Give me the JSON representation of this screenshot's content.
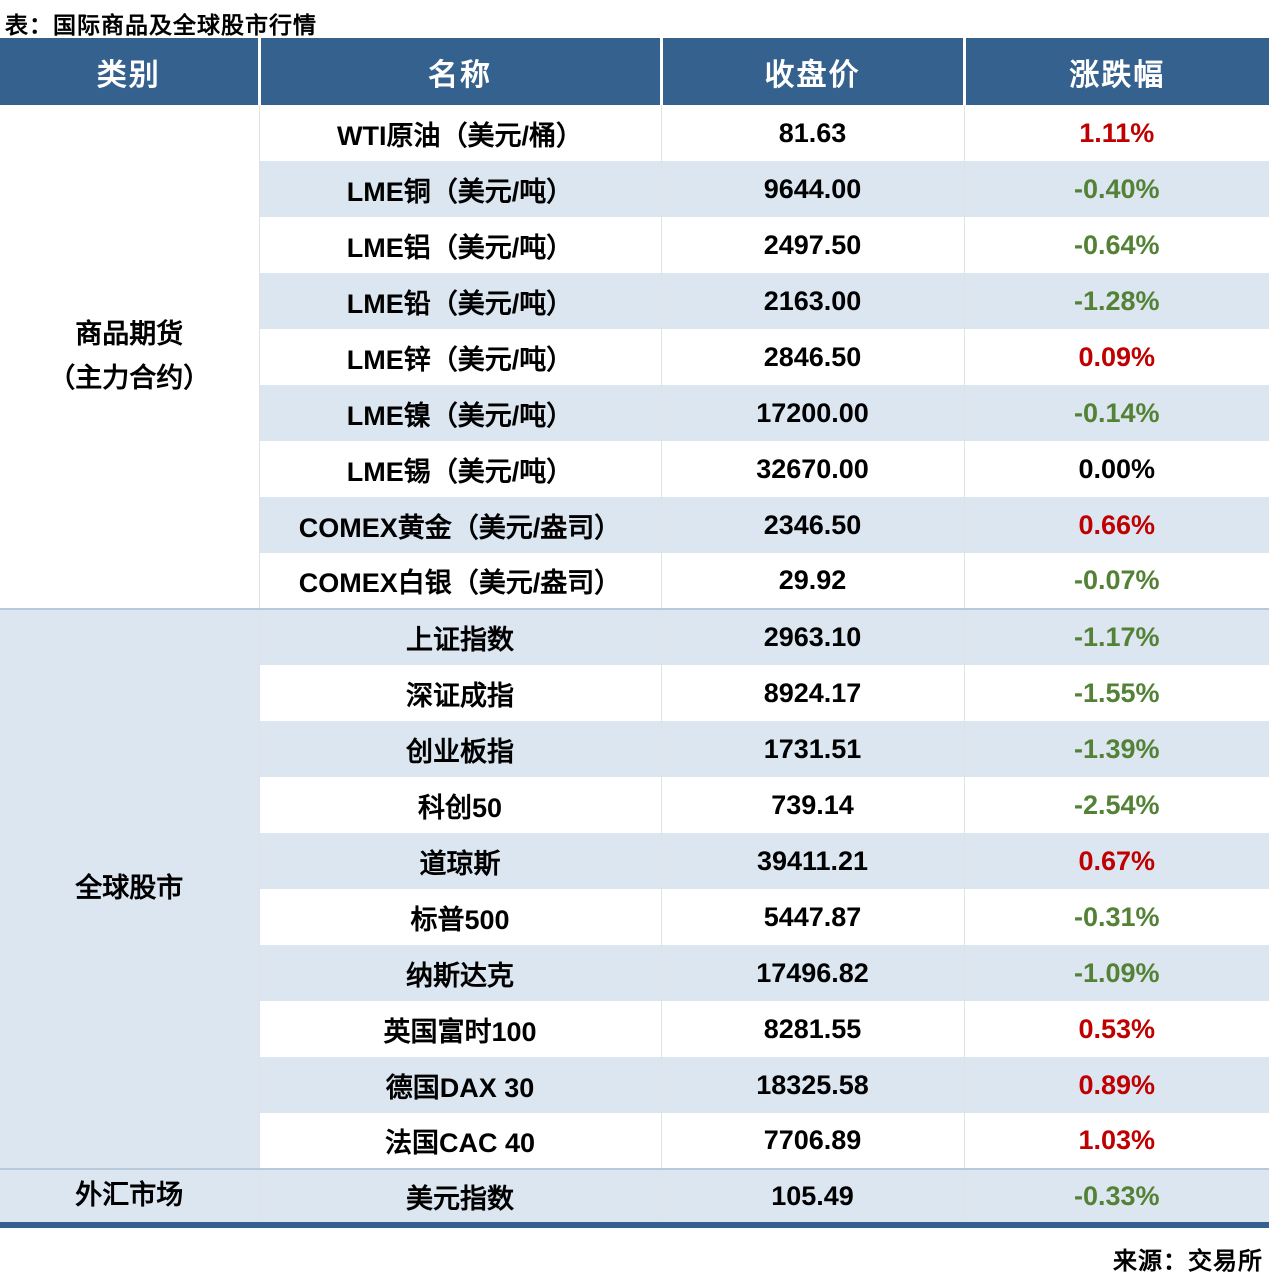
{
  "title": "表：国际商品及全球股市行情",
  "source": "来源：交易所",
  "colors": {
    "header_bg": "#35618E",
    "stripe_bg": "#DCE6F1",
    "up_red": "#C00000",
    "down_green": "#538135",
    "divider": "#B9C9DC"
  },
  "columns": [
    "类别",
    "名称",
    "收盘价",
    "涨跌幅"
  ],
  "groups": [
    {
      "category_lines": [
        "商品期货",
        "（主力合约）"
      ],
      "rows": [
        {
          "name": "WTI原油（美元/桶）",
          "close": "81.63",
          "change": "1.11%",
          "trend": "up"
        },
        {
          "name": "LME铜（美元/吨）",
          "close": "9644.00",
          "change": "-0.40%",
          "trend": "down"
        },
        {
          "name": "LME铝（美元/吨）",
          "close": "2497.50",
          "change": "-0.64%",
          "trend": "down"
        },
        {
          "name": "LME铅（美元/吨）",
          "close": "2163.00",
          "change": "-1.28%",
          "trend": "down"
        },
        {
          "name": "LME锌（美元/吨）",
          "close": "2846.50",
          "change": "0.09%",
          "trend": "up"
        },
        {
          "name": "LME镍（美元/吨）",
          "close": "17200.00",
          "change": "-0.14%",
          "trend": "down"
        },
        {
          "name": "LME锡（美元/吨）",
          "close": "32670.00",
          "change": "0.00%",
          "trend": "flat"
        },
        {
          "name": "COMEX黄金（美元/盎司）",
          "close": "2346.50",
          "change": "0.66%",
          "trend": "up"
        },
        {
          "name": "COMEX白银（美元/盎司）",
          "close": "29.92",
          "change": "-0.07%",
          "trend": "down"
        }
      ]
    },
    {
      "category_lines": [
        "全球股市"
      ],
      "rows": [
        {
          "name": "上证指数",
          "close": "2963.10",
          "change": "-1.17%",
          "trend": "down"
        },
        {
          "name": "深证成指",
          "close": "8924.17",
          "change": "-1.55%",
          "trend": "down"
        },
        {
          "name": "创业板指",
          "close": "1731.51",
          "change": "-1.39%",
          "trend": "down"
        },
        {
          "name": "科创50",
          "close": "739.14",
          "change": "-2.54%",
          "trend": "down"
        },
        {
          "name": "道琼斯",
          "close": "39411.21",
          "change": "0.67%",
          "trend": "up"
        },
        {
          "name": "标普500",
          "close": "5447.87",
          "change": "-0.31%",
          "trend": "down"
        },
        {
          "name": "纳斯达克",
          "close": "17496.82",
          "change": "-1.09%",
          "trend": "down"
        },
        {
          "name": "英国富时100",
          "close": "8281.55",
          "change": "0.53%",
          "trend": "up"
        },
        {
          "name": "德国DAX 30",
          "close": "18325.58",
          "change": "0.89%",
          "trend": "up"
        },
        {
          "name": "法国CAC 40",
          "close": "7706.89",
          "change": "1.03%",
          "trend": "up"
        }
      ]
    },
    {
      "category_lines": [
        "外汇市场"
      ],
      "rows": [
        {
          "name": "美元指数",
          "close": "105.49",
          "change": "-0.33%",
          "trend": "down"
        }
      ]
    }
  ],
  "chart_data": {
    "type": "table",
    "title": "表：国际商品及全球股市行情",
    "columns": [
      "类别",
      "名称",
      "收盘价",
      "涨跌幅"
    ],
    "rows": [
      [
        "商品期货（主力合约）",
        "WTI原油（美元/桶）",
        81.63,
        "1.11%"
      ],
      [
        "商品期货（主力合约）",
        "LME铜（美元/吨）",
        9644.0,
        "-0.40%"
      ],
      [
        "商品期货（主力合约）",
        "LME铝（美元/吨）",
        2497.5,
        "-0.64%"
      ],
      [
        "商品期货（主力合约）",
        "LME铅（美元/吨）",
        2163.0,
        "-1.28%"
      ],
      [
        "商品期货（主力合约）",
        "LME锌（美元/吨）",
        2846.5,
        "0.09%"
      ],
      [
        "商品期货（主力合约）",
        "LME镍（美元/吨）",
        17200.0,
        "-0.14%"
      ],
      [
        "商品期货（主力合约）",
        "LME锡（美元/吨）",
        32670.0,
        "0.00%"
      ],
      [
        "商品期货（主力合约）",
        "COMEX黄金（美元/盎司）",
        2346.5,
        "0.66%"
      ],
      [
        "商品期货（主力合约）",
        "COMEX白银（美元/盎司）",
        29.92,
        "-0.07%"
      ],
      [
        "全球股市",
        "上证指数",
        2963.1,
        "-1.17%"
      ],
      [
        "全球股市",
        "深证成指",
        8924.17,
        "-1.55%"
      ],
      [
        "全球股市",
        "创业板指",
        1731.51,
        "-1.39%"
      ],
      [
        "全球股市",
        "科创50",
        739.14,
        "-2.54%"
      ],
      [
        "全球股市",
        "道琼斯",
        39411.21,
        "0.67%"
      ],
      [
        "全球股市",
        "标普500",
        5447.87,
        "-0.31%"
      ],
      [
        "全球股市",
        "纳斯达克",
        17496.82,
        "-1.09%"
      ],
      [
        "全球股市",
        "英国富时100",
        8281.55,
        "0.53%"
      ],
      [
        "全球股市",
        "德国DAX 30",
        18325.58,
        "0.89%"
      ],
      [
        "全球股市",
        "法国CAC 40",
        7706.89,
        "1.03%"
      ],
      [
        "外汇市场",
        "美元指数",
        105.49,
        "-0.33%"
      ]
    ]
  }
}
